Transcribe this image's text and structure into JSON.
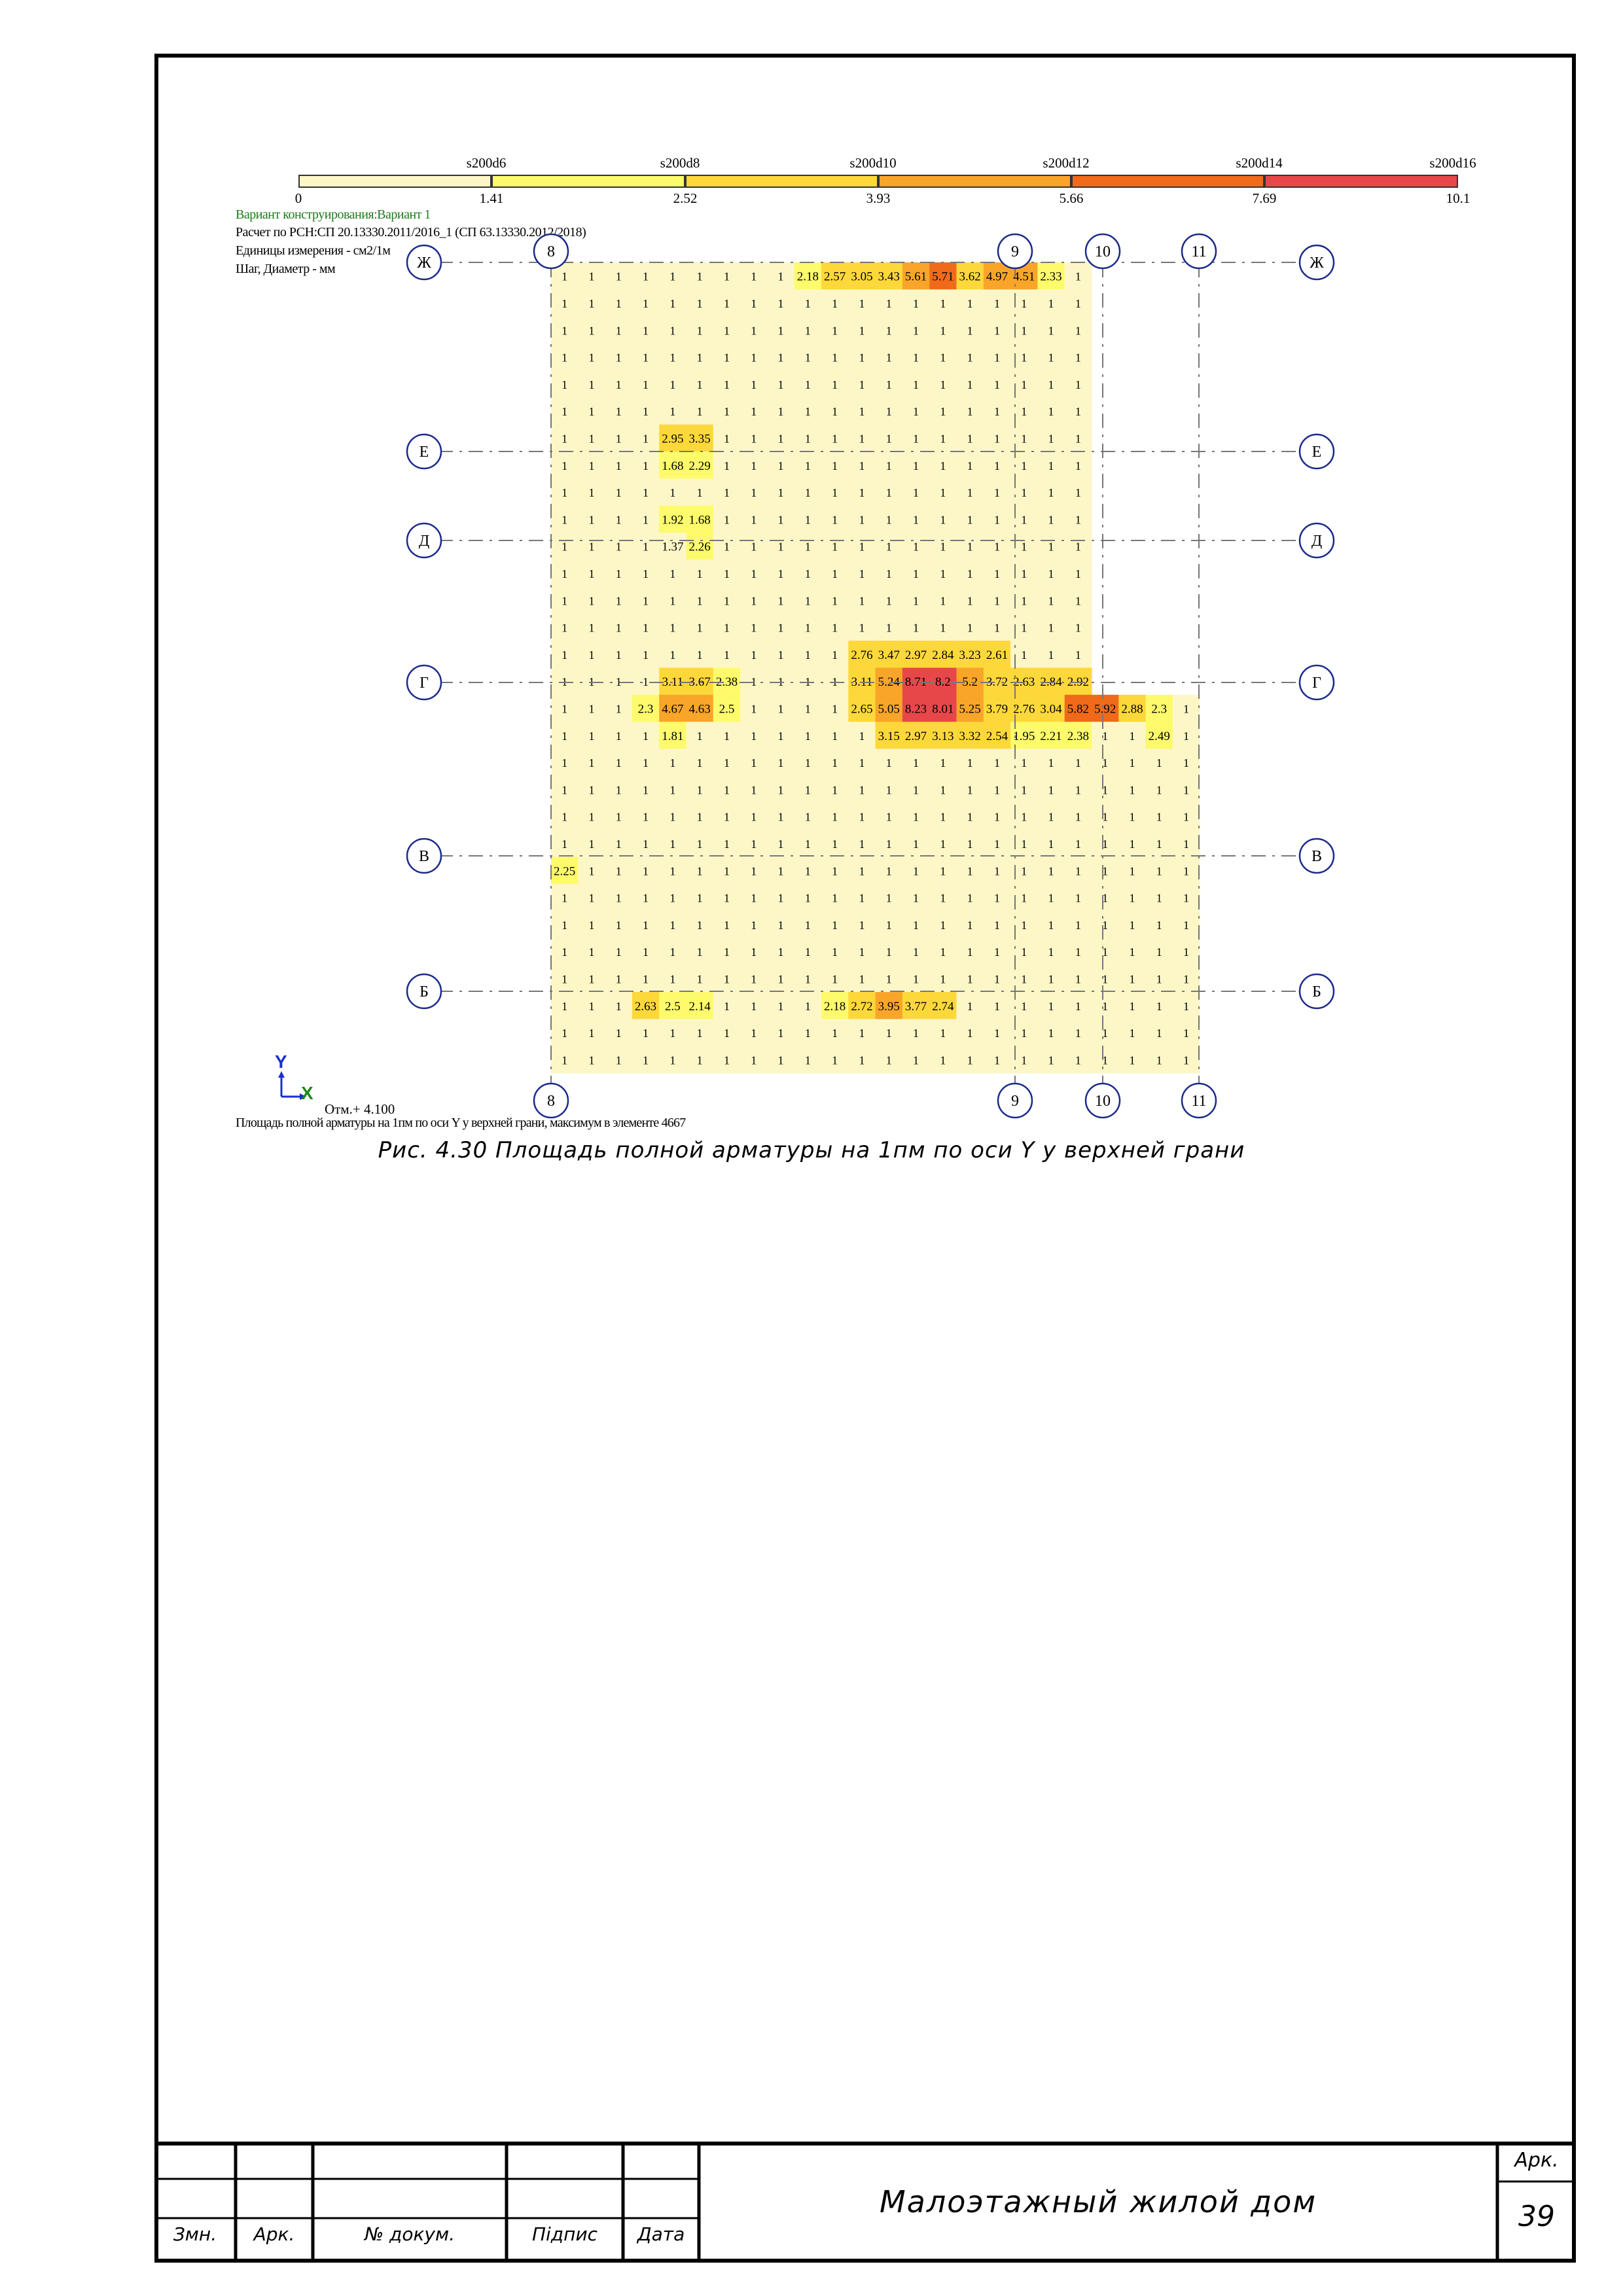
{
  "legend": {
    "step_labels": [
      "s200d6",
      "s200d8",
      "s200d10",
      "s200d12",
      "s200d14",
      "s200d16"
    ],
    "values": [
      "0",
      "1.41",
      "2.52",
      "3.93",
      "5.66",
      "7.69",
      "10.1"
    ],
    "colors": [
      "#fdf7c8",
      "#fdfb6c",
      "#fdd83a",
      "#f8a52a",
      "#f06a1a",
      "#e8474a"
    ]
  },
  "info": {
    "variant": "Вариант конструирования:Вариант 1",
    "calc": "Расчет по РСН:СП 20.13330.2011/2016_1 (СП 63.13330.2012/2018)",
    "units": "Единицы измерения - см2/1м",
    "step": "Шаг, Диаметр - мм"
  },
  "axes": {
    "vertical": [
      "8",
      "9",
      "10",
      "11"
    ],
    "horizontal": [
      "Ж",
      "Е",
      "Д",
      "Г",
      "В",
      "Б"
    ]
  },
  "coord": {
    "y": "Y",
    "x": "X"
  },
  "elevation": "Отм.+ 4.100",
  "footer_note": "Площадь полной арматуры на 1пм по оси Y у верхней грани, максимум в элементе 4667",
  "caption": "Рис. 4.30 Площадь полной арматуры на 1пм по оси Y у верхней грани",
  "cells": [
    {
      "r": 0,
      "c": 9,
      "v": "2.18"
    },
    {
      "r": 0,
      "c": 10,
      "v": "2.57"
    },
    {
      "r": 0,
      "c": 11,
      "v": "3.05"
    },
    {
      "r": 0,
      "c": 12,
      "v": "3.43"
    },
    {
      "r": 0,
      "c": 13,
      "v": "5.61"
    },
    {
      "r": 0,
      "c": 14,
      "v": "5.71"
    },
    {
      "r": 0,
      "c": 15,
      "v": "3.62"
    },
    {
      "r": 0,
      "c": 16,
      "v": "4.97"
    },
    {
      "r": 0,
      "c": 17,
      "v": "4.51"
    },
    {
      "r": 0,
      "c": 18,
      "v": "2.33"
    },
    {
      "r": 6,
      "c": 4,
      "v": "2.95"
    },
    {
      "r": 6,
      "c": 5,
      "v": "3.35"
    },
    {
      "r": 7,
      "c": 4,
      "v": "1.68"
    },
    {
      "r": 7,
      "c": 5,
      "v": "2.29"
    },
    {
      "r": 9,
      "c": 4,
      "v": "1.92"
    },
    {
      "r": 9,
      "c": 5,
      "v": "1.68"
    },
    {
      "r": 10,
      "c": 4,
      "v": "1.37"
    },
    {
      "r": 10,
      "c": 5,
      "v": "2.26"
    },
    {
      "r": 14,
      "c": 11,
      "v": "2.76"
    },
    {
      "r": 14,
      "c": 12,
      "v": "3.47"
    },
    {
      "r": 14,
      "c": 13,
      "v": "2.97"
    },
    {
      "r": 14,
      "c": 14,
      "v": "2.84"
    },
    {
      "r": 14,
      "c": 15,
      "v": "3.23"
    },
    {
      "r": 14,
      "c": 16,
      "v": "2.61"
    },
    {
      "r": 15,
      "c": 4,
      "v": "3.11"
    },
    {
      "r": 15,
      "c": 5,
      "v": "3.67"
    },
    {
      "r": 15,
      "c": 6,
      "v": "2.38"
    },
    {
      "r": 15,
      "c": 11,
      "v": "3.11"
    },
    {
      "r": 15,
      "c": 12,
      "v": "5.24"
    },
    {
      "r": 15,
      "c": 13,
      "v": "8.71"
    },
    {
      "r": 15,
      "c": 14,
      "v": "8.2"
    },
    {
      "r": 15,
      "c": 15,
      "v": "5.2"
    },
    {
      "r": 15,
      "c": 16,
      "v": "3.72"
    },
    {
      "r": 15,
      "c": 17,
      "v": "2.63"
    },
    {
      "r": 15,
      "c": 18,
      "v": "2.84"
    },
    {
      "r": 15,
      "c": 19,
      "v": "2.92"
    },
    {
      "r": 16,
      "c": 3,
      "v": "2.3"
    },
    {
      "r": 16,
      "c": 4,
      "v": "4.67"
    },
    {
      "r": 16,
      "c": 5,
      "v": "4.63"
    },
    {
      "r": 16,
      "c": 6,
      "v": "2.5"
    },
    {
      "r": 16,
      "c": 11,
      "v": "2.65"
    },
    {
      "r": 16,
      "c": 12,
      "v": "5.05"
    },
    {
      "r": 16,
      "c": 13,
      "v": "8.23"
    },
    {
      "r": 16,
      "c": 14,
      "v": "8.01"
    },
    {
      "r": 16,
      "c": 15,
      "v": "5.25"
    },
    {
      "r": 16,
      "c": 16,
      "v": "3.79"
    },
    {
      "r": 16,
      "c": 17,
      "v": "2.76"
    },
    {
      "r": 16,
      "c": 18,
      "v": "3.04"
    },
    {
      "r": 16,
      "c": 19,
      "v": "5.82"
    },
    {
      "r": 16,
      "c": 20,
      "v": "5.92"
    },
    {
      "r": 16,
      "c": 21,
      "v": "2.88"
    },
    {
      "r": 16,
      "c": 22,
      "v": "2.3"
    },
    {
      "r": 17,
      "c": 4,
      "v": "1.81"
    },
    {
      "r": 17,
      "c": 12,
      "v": "3.15"
    },
    {
      "r": 17,
      "c": 13,
      "v": "2.97"
    },
    {
      "r": 17,
      "c": 14,
      "v": "3.13"
    },
    {
      "r": 17,
      "c": 15,
      "v": "3.32"
    },
    {
      "r": 17,
      "c": 16,
      "v": "2.54"
    },
    {
      "r": 17,
      "c": 17,
      "v": "1.95"
    },
    {
      "r": 17,
      "c": 18,
      "v": "2.21"
    },
    {
      "r": 17,
      "c": 19,
      "v": "2.38"
    },
    {
      "r": 17,
      "c": 22,
      "v": "2.49"
    },
    {
      "r": 22,
      "c": 0,
      "v": "2.25"
    },
    {
      "r": 27,
      "c": 3,
      "v": "2.63"
    },
    {
      "r": 27,
      "c": 4,
      "v": "2.5"
    },
    {
      "r": 27,
      "c": 5,
      "v": "2.14"
    },
    {
      "r": 27,
      "c": 10,
      "v": "2.18"
    },
    {
      "r": 27,
      "c": 11,
      "v": "2.72"
    },
    {
      "r": 27,
      "c": 12,
      "v": "3.95"
    },
    {
      "r": 27,
      "c": 13,
      "v": "3.77"
    },
    {
      "r": 27,
      "c": 14,
      "v": "2.74"
    }
  ],
  "stamp": {
    "col_labels": [
      "Змн.",
      "Арк.",
      "№ докум.",
      "Підпис",
      "Дата"
    ],
    "title": "Малоэтажный жилой дом",
    "sheet_label": "Арк.",
    "sheet_number": "39"
  }
}
